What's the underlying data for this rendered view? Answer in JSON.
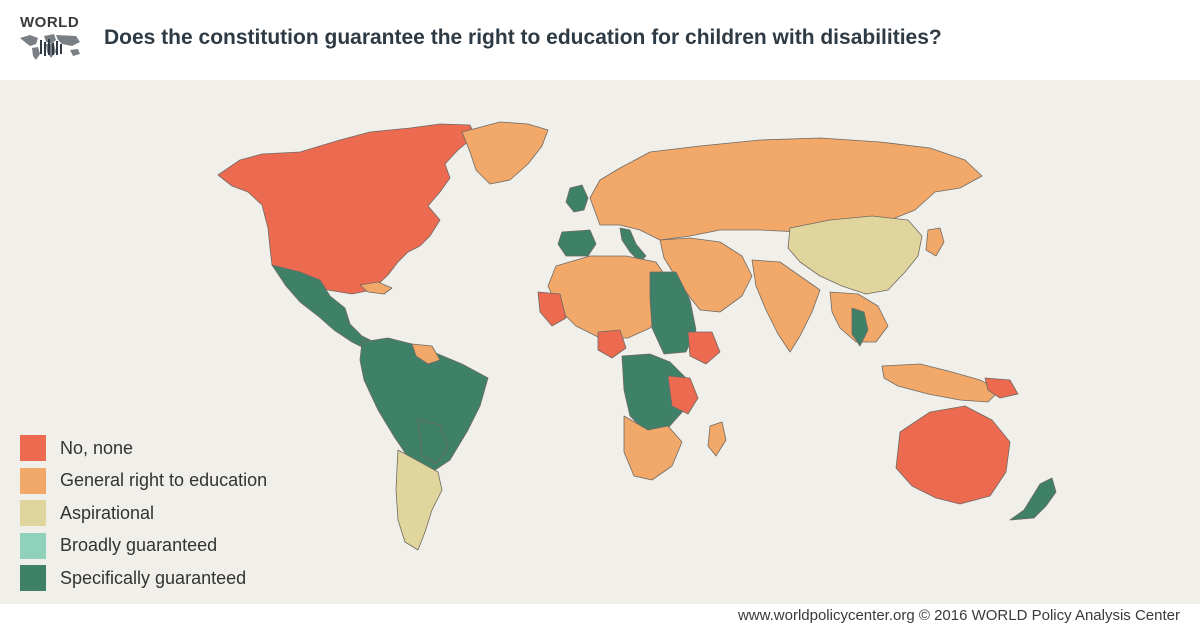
{
  "header": {
    "logo_text": "WORLD",
    "title": "Does the constitution guarantee the right to education for children with disabilities?"
  },
  "colors": {
    "background": "#f1efea",
    "border": "#6f6a64",
    "no_data": "#dedbd6",
    "no_none": "#ec6a50",
    "general": "#f2a868",
    "aspirational": "#e0d59c",
    "broadly": "#8fd1bb",
    "specifically": "#3f8068"
  },
  "legend": {
    "items": [
      {
        "label": "No, none",
        "color": "#ec6a50"
      },
      {
        "label": "General right to education",
        "color": "#f2a868"
      },
      {
        "label": "Aspirational",
        "color": "#e0d59c"
      },
      {
        "label": "Broadly guaranteed",
        "color": "#8fd1bb"
      },
      {
        "label": "Specifically guaranteed",
        "color": "#3f8068"
      }
    ]
  },
  "map": {
    "regions": [
      {
        "name": "north-america-canada-usa",
        "category": "no_none"
      },
      {
        "name": "greenland",
        "category": "general"
      },
      {
        "name": "mexico-central-america",
        "category": "specifically"
      },
      {
        "name": "cuba",
        "category": "general"
      },
      {
        "name": "south-america-north",
        "category": "specifically"
      },
      {
        "name": "guianas",
        "category": "general"
      },
      {
        "name": "bolivia-paraguay",
        "category": "specifically"
      },
      {
        "name": "argentina-chile",
        "category": "aspirational"
      },
      {
        "name": "uk-ireland",
        "category": "specifically"
      },
      {
        "name": "iberia",
        "category": "specifically"
      },
      {
        "name": "germany",
        "category": "no_none"
      },
      {
        "name": "italy",
        "category": "specifically"
      },
      {
        "name": "europe-russia",
        "category": "general"
      },
      {
        "name": "china",
        "category": "aspirational"
      },
      {
        "name": "middle-east",
        "category": "general"
      },
      {
        "name": "india",
        "category": "general"
      },
      {
        "name": "southeast-asia",
        "category": "general"
      },
      {
        "name": "thailand",
        "category": "specifically"
      },
      {
        "name": "north-africa",
        "category": "general"
      },
      {
        "name": "mauritania",
        "category": "no_none"
      },
      {
        "name": "egypt-sudan",
        "category": "specifically"
      },
      {
        "name": "ethiopia",
        "category": "no_none"
      },
      {
        "name": "nigeria",
        "category": "no_none"
      },
      {
        "name": "central-africa",
        "category": "specifically"
      },
      {
        "name": "tanzania",
        "category": "no_none"
      },
      {
        "name": "southern-africa",
        "category": "general"
      },
      {
        "name": "madagascar",
        "category": "general"
      },
      {
        "name": "indonesia",
        "category": "general"
      },
      {
        "name": "papua-new-guinea",
        "category": "no_none"
      },
      {
        "name": "australia",
        "category": "no_none"
      },
      {
        "name": "new-zealand",
        "category": "specifically"
      },
      {
        "name": "japan",
        "category": "general"
      }
    ]
  },
  "footer": {
    "credit": "www.worldpolicycenter.org © 2016 WORLD Policy Analysis Center"
  }
}
